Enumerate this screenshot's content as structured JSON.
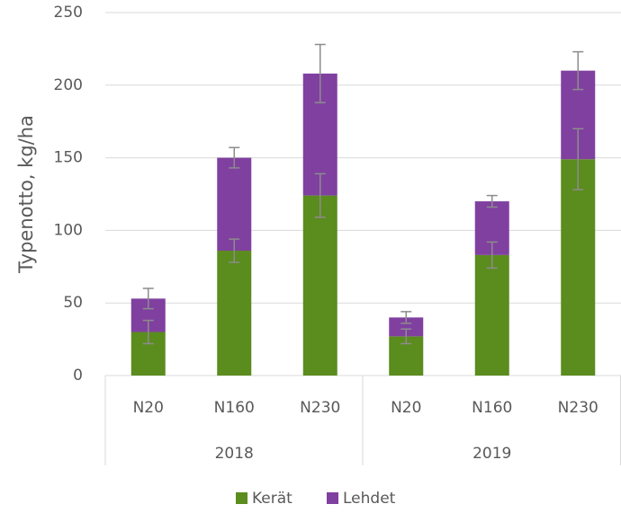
{
  "chart_data": {
    "type": "stacked_bar",
    "y_label": "Typenotto, kg/ha",
    "groups": [
      {
        "name": "2018",
        "categories": [
          "N20",
          "N160",
          "N230"
        ]
      },
      {
        "name": "2019",
        "categories": [
          "N20",
          "N160",
          "N230"
        ]
      }
    ],
    "series": [
      {
        "name": "Kerät",
        "color": "#5b8c1e",
        "values": [
          30,
          86,
          124,
          27,
          83,
          149
        ],
        "errors": [
          8,
          8,
          15,
          5,
          9,
          21
        ]
      },
      {
        "name": "Lehdet",
        "color": "#8040a0",
        "values": [
          23,
          64,
          84,
          13,
          37,
          61
        ],
        "errors": [
          7,
          7,
          20,
          4,
          4,
          13
        ]
      }
    ],
    "ylim": [
      0,
      250
    ],
    "yticks": [
      0,
      50,
      100,
      150,
      200,
      250
    ],
    "grid": true,
    "legend": "bottom"
  }
}
